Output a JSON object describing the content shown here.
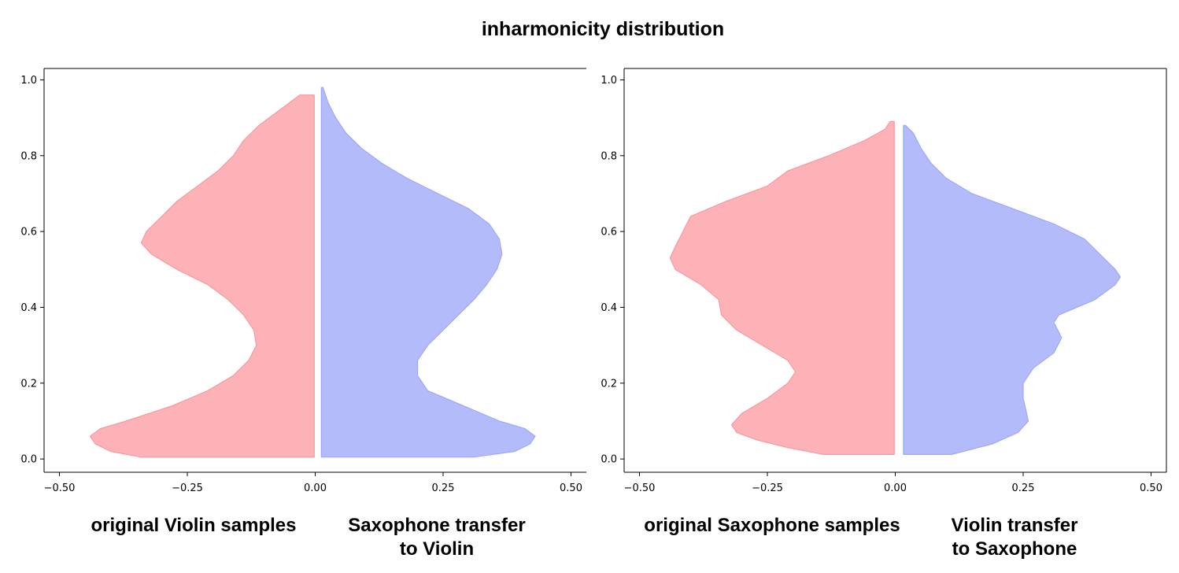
{
  "title": "inharmonicity distribution",
  "colors": {
    "left": "#fdb2b8",
    "left_edge": "#f7989f",
    "right": "#b4bbfb",
    "right_edge": "#9ea8f7"
  },
  "chart_data": [
    {
      "type": "violin",
      "xlim": [
        -0.53,
        0.53
      ],
      "ylim": [
        -0.035,
        1.03
      ],
      "xticks": [
        -0.5,
        -0.25,
        0.0,
        0.25,
        0.5
      ],
      "xtick_labels": [
        "−0.50",
        "−0.25",
        "0.00",
        "0.25",
        "0.50"
      ],
      "yticks": [
        0.0,
        0.2,
        0.4,
        0.6,
        0.8,
        1.0
      ],
      "ytick_labels": [
        "0.0",
        "0.2",
        "0.4",
        "0.6",
        "0.8",
        "1.0"
      ],
      "left_label": "original Violin samples",
      "right_label": [
        "Saxophone transfer",
        "to Violin"
      ],
      "left_series": {
        "inner": -0.002,
        "points": [
          [
            0.005,
            -0.34
          ],
          [
            0.02,
            -0.4
          ],
          [
            0.04,
            -0.43
          ],
          [
            0.06,
            -0.44
          ],
          [
            0.08,
            -0.42
          ],
          [
            0.1,
            -0.37
          ],
          [
            0.14,
            -0.28
          ],
          [
            0.18,
            -0.21
          ],
          [
            0.22,
            -0.16
          ],
          [
            0.26,
            -0.13
          ],
          [
            0.3,
            -0.115
          ],
          [
            0.34,
            -0.12
          ],
          [
            0.38,
            -0.14
          ],
          [
            0.42,
            -0.17
          ],
          [
            0.46,
            -0.21
          ],
          [
            0.5,
            -0.27
          ],
          [
            0.54,
            -0.32
          ],
          [
            0.57,
            -0.34
          ],
          [
            0.6,
            -0.33
          ],
          [
            0.64,
            -0.3
          ],
          [
            0.68,
            -0.27
          ],
          [
            0.72,
            -0.23
          ],
          [
            0.76,
            -0.19
          ],
          [
            0.8,
            -0.16
          ],
          [
            0.84,
            -0.14
          ],
          [
            0.88,
            -0.11
          ],
          [
            0.92,
            -0.07
          ],
          [
            0.96,
            -0.03
          ]
        ]
      },
      "right_series": {
        "inner": 0.012,
        "points": [
          [
            0.005,
            0.31
          ],
          [
            0.02,
            0.39
          ],
          [
            0.04,
            0.42
          ],
          [
            0.06,
            0.43
          ],
          [
            0.08,
            0.41
          ],
          [
            0.1,
            0.36
          ],
          [
            0.14,
            0.29
          ],
          [
            0.18,
            0.22
          ],
          [
            0.22,
            0.2
          ],
          [
            0.26,
            0.2
          ],
          [
            0.3,
            0.22
          ],
          [
            0.34,
            0.25
          ],
          [
            0.38,
            0.28
          ],
          [
            0.42,
            0.31
          ],
          [
            0.46,
            0.335
          ],
          [
            0.5,
            0.355
          ],
          [
            0.54,
            0.365
          ],
          [
            0.58,
            0.36
          ],
          [
            0.62,
            0.34
          ],
          [
            0.66,
            0.3
          ],
          [
            0.7,
            0.24
          ],
          [
            0.74,
            0.18
          ],
          [
            0.78,
            0.13
          ],
          [
            0.82,
            0.09
          ],
          [
            0.86,
            0.06
          ],
          [
            0.9,
            0.04
          ],
          [
            0.94,
            0.025
          ],
          [
            0.98,
            0.015
          ]
        ]
      }
    },
    {
      "type": "violin",
      "xlim": [
        -0.53,
        0.53
      ],
      "ylim": [
        -0.035,
        1.03
      ],
      "xticks": [
        -0.5,
        -0.25,
        0.0,
        0.25,
        0.5
      ],
      "xtick_labels": [
        "−0.50",
        "−0.25",
        "0.00",
        "0.25",
        "0.50"
      ],
      "yticks": [
        0.0,
        0.2,
        0.4,
        0.6,
        0.8,
        1.0
      ],
      "ytick_labels": [
        "0.0",
        "0.2",
        "0.4",
        "0.6",
        "0.8",
        "1.0"
      ],
      "left_label": "original Saxophone samples",
      "right_label": [
        "Violin transfer",
        "to Saxophone"
      ],
      "left_series": {
        "inner": -0.002,
        "points": [
          [
            0.012,
            -0.14
          ],
          [
            0.03,
            -0.21
          ],
          [
            0.05,
            -0.27
          ],
          [
            0.07,
            -0.31
          ],
          [
            0.09,
            -0.32
          ],
          [
            0.12,
            -0.3
          ],
          [
            0.16,
            -0.25
          ],
          [
            0.2,
            -0.21
          ],
          [
            0.23,
            -0.195
          ],
          [
            0.26,
            -0.21
          ],
          [
            0.3,
            -0.26
          ],
          [
            0.34,
            -0.31
          ],
          [
            0.38,
            -0.34
          ],
          [
            0.42,
            -0.345
          ],
          [
            0.46,
            -0.38
          ],
          [
            0.5,
            -0.43
          ],
          [
            0.53,
            -0.44
          ],
          [
            0.56,
            -0.43
          ],
          [
            0.6,
            -0.415
          ],
          [
            0.64,
            -0.4
          ],
          [
            0.68,
            -0.33
          ],
          [
            0.72,
            -0.25
          ],
          [
            0.76,
            -0.21
          ],
          [
            0.8,
            -0.13
          ],
          [
            0.84,
            -0.06
          ],
          [
            0.87,
            -0.02
          ],
          [
            0.89,
            -0.01
          ]
        ]
      },
      "right_series": {
        "inner": 0.016,
        "points": [
          [
            0.012,
            0.11
          ],
          [
            0.04,
            0.19
          ],
          [
            0.07,
            0.24
          ],
          [
            0.1,
            0.26
          ],
          [
            0.13,
            0.255
          ],
          [
            0.16,
            0.25
          ],
          [
            0.2,
            0.25
          ],
          [
            0.24,
            0.27
          ],
          [
            0.28,
            0.31
          ],
          [
            0.32,
            0.325
          ],
          [
            0.36,
            0.31
          ],
          [
            0.38,
            0.32
          ],
          [
            0.42,
            0.39
          ],
          [
            0.46,
            0.43
          ],
          [
            0.48,
            0.44
          ],
          [
            0.5,
            0.43
          ],
          [
            0.54,
            0.4
          ],
          [
            0.58,
            0.37
          ],
          [
            0.62,
            0.31
          ],
          [
            0.66,
            0.23
          ],
          [
            0.7,
            0.15
          ],
          [
            0.74,
            0.1
          ],
          [
            0.78,
            0.07
          ],
          [
            0.82,
            0.05
          ],
          [
            0.86,
            0.035
          ],
          [
            0.88,
            0.02
          ]
        ]
      }
    }
  ]
}
